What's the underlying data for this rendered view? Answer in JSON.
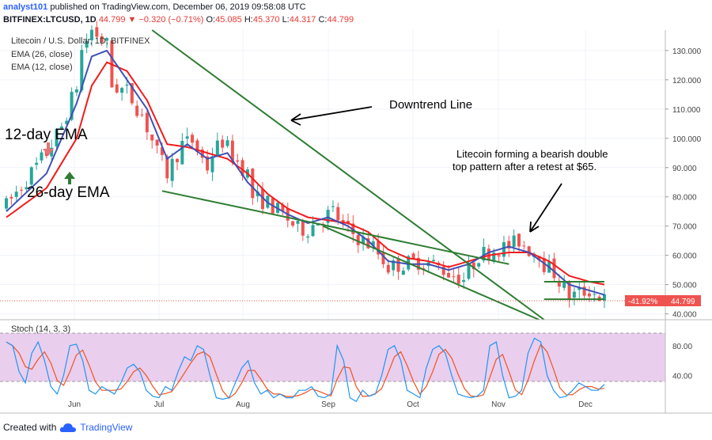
{
  "header": {
    "publisher": "analyst101",
    "published_text": "published on TradingView.com, December 06, 2019 09:58:08 UTC",
    "symbol": "BITFINEX:LTCUSD, 1D",
    "last": "44.799",
    "change": "−0.320 (−0.71%)",
    "ohlc_o_label": "O:",
    "ohlc_o": "45.085",
    "ohlc_h_label": "H:",
    "ohlc_h": "45.370",
    "ohlc_l_label": "L:",
    "ohlc_l": "44.317",
    "ohlc_c_label": "C:",
    "ohlc_c": "44.799"
  },
  "legend": {
    "title": "Litecoin / U.S. Dollar, 1D, BITFINEX",
    "ema26": "EMA (26, close)",
    "ema12": "EMA (12, close)",
    "stoch": "Stoch (14, 3, 3)"
  },
  "annotations": {
    "downtrend": "Downtrend Line",
    "double_top_line1": "Litecoin forming a bearish  double",
    "double_top_line2": "top pattern after a retest at $65.",
    "ema12_label": "12-day EMA",
    "ema26_label": "26-day EMA"
  },
  "price_badge": {
    "pct": "-41.92%",
    "price": "44.799"
  },
  "footer": {
    "created_with": "Created with",
    "brand": "TradingView"
  },
  "colors": {
    "up": "#26a69a",
    "down": "#ef5350",
    "ema12": "#3f51b5",
    "ema26": "#f21b1b",
    "trendline": "#2e7d32",
    "stoch_k": "#2196f3",
    "stoch_d": "#f4511e",
    "stoch_bg": "#e1bee7"
  },
  "chart_data": {
    "type": "candlestick",
    "y_axis": {
      "ticks": [
        "130.000",
        "120.000",
        "110.000",
        "100.000",
        "90.000",
        "80.000",
        "70.000",
        "60.000",
        "50.000",
        "40.000"
      ],
      "ylim": [
        38,
        137
      ]
    },
    "x_axis": {
      "ticks": [
        "Jun",
        "Jul",
        "Aug",
        "Sep",
        "Oct",
        "Nov",
        "Dec"
      ]
    },
    "stoch_axis": {
      "ticks": [
        "80.00",
        "40.00"
      ],
      "ylim": [
        0,
        100
      ],
      "bands": [
        80,
        20
      ]
    },
    "price_path": [
      [
        0,
        77
      ],
      [
        4,
        86
      ],
      [
        8,
        95
      ],
      [
        11,
        104
      ],
      [
        14,
        118
      ],
      [
        15,
        130
      ],
      [
        17,
        137
      ],
      [
        20,
        132
      ],
      [
        21,
        118
      ],
      [
        24,
        116
      ],
      [
        27,
        108
      ],
      [
        30,
        95
      ],
      [
        32,
        88
      ],
      [
        35,
        98
      ],
      [
        37,
        99
      ],
      [
        40,
        90
      ],
      [
        41,
        95
      ],
      [
        43,
        99
      ],
      [
        46,
        92
      ],
      [
        48,
        88
      ],
      [
        49,
        80
      ],
      [
        52,
        78
      ],
      [
        55,
        74
      ],
      [
        58,
        69
      ],
      [
        60,
        69
      ],
      [
        62,
        72
      ],
      [
        65,
        75
      ],
      [
        67,
        70
      ],
      [
        70,
        66
      ],
      [
        73,
        63
      ],
      [
        76,
        56
      ],
      [
        79,
        57
      ],
      [
        82,
        58
      ],
      [
        85,
        57
      ],
      [
        88,
        54
      ],
      [
        91,
        52
      ],
      [
        94,
        60
      ],
      [
        97,
        62
      ],
      [
        100,
        63
      ],
      [
        102,
        65
      ],
      [
        104,
        62
      ],
      [
        106,
        61
      ],
      [
        107,
        57
      ],
      [
        109,
        54
      ],
      [
        112,
        46
      ],
      [
        114,
        47
      ],
      [
        116,
        48
      ],
      [
        118,
        46
      ],
      [
        119,
        44.8
      ]
    ],
    "ema12_path": [
      [
        0,
        75
      ],
      [
        8,
        88
      ],
      [
        14,
        112
      ],
      [
        17,
        128
      ],
      [
        20,
        130
      ],
      [
        24,
        120
      ],
      [
        28,
        110
      ],
      [
        32,
        93
      ],
      [
        36,
        98
      ],
      [
        40,
        93
      ],
      [
        44,
        95
      ],
      [
        48,
        85
      ],
      [
        52,
        78
      ],
      [
        56,
        74
      ],
      [
        60,
        71
      ],
      [
        64,
        73
      ],
      [
        68,
        70
      ],
      [
        72,
        65
      ],
      [
        76,
        58
      ],
      [
        80,
        57
      ],
      [
        84,
        57
      ],
      [
        88,
        55
      ],
      [
        92,
        57
      ],
      [
        96,
        61
      ],
      [
        100,
        63
      ],
      [
        104,
        61
      ],
      [
        108,
        56
      ],
      [
        112,
        50
      ],
      [
        116,
        48
      ],
      [
        119,
        46.5
      ]
    ],
    "ema26_path": [
      [
        0,
        73
      ],
      [
        8,
        83
      ],
      [
        14,
        100
      ],
      [
        17,
        118
      ],
      [
        20,
        126
      ],
      [
        24,
        123
      ],
      [
        28,
        113
      ],
      [
        32,
        98
      ],
      [
        36,
        97
      ],
      [
        40,
        95
      ],
      [
        44,
        93
      ],
      [
        48,
        88
      ],
      [
        52,
        81
      ],
      [
        56,
        76
      ],
      [
        60,
        73
      ],
      [
        64,
        72
      ],
      [
        68,
        71
      ],
      [
        72,
        68
      ],
      [
        76,
        62
      ],
      [
        80,
        59
      ],
      [
        84,
        58
      ],
      [
        88,
        56
      ],
      [
        92,
        58
      ],
      [
        96,
        60
      ],
      [
        100,
        61
      ],
      [
        104,
        61
      ],
      [
        108,
        58
      ],
      [
        112,
        53
      ],
      [
        116,
        51
      ],
      [
        119,
        50
      ]
    ],
    "trendlines": [
      {
        "name": "downtrend",
        "points": [
          [
            29,
            137
          ],
          [
            107,
            38
          ]
        ]
      },
      {
        "name": "support",
        "points": [
          [
            31,
            82
          ],
          [
            100,
            57
          ]
        ]
      },
      {
        "name": "lower",
        "points": [
          [
            63,
            70
          ],
          [
            106,
            38
          ]
        ]
      },
      {
        "name": "resistance_h",
        "points": [
          [
            107,
            51
          ],
          [
            119,
            51
          ]
        ]
      },
      {
        "name": "support_h",
        "points": [
          [
            107,
            45
          ],
          [
            119,
            45
          ]
        ]
      }
    ],
    "stoch_k": [
      85,
      80,
      45,
      30,
      70,
      85,
      60,
      25,
      15,
      40,
      80,
      82,
      60,
      20,
      15,
      25,
      20,
      15,
      30,
      50,
      55,
      45,
      20,
      12,
      10,
      25,
      20,
      45,
      65,
      60,
      80,
      75,
      40,
      10,
      8,
      10,
      30,
      50,
      60,
      30,
      15,
      20,
      10,
      15,
      10,
      10,
      20,
      20,
      25,
      12,
      10,
      15,
      80,
      60,
      10,
      5,
      20,
      12,
      15,
      40,
      75,
      80,
      60,
      20,
      15,
      10,
      50,
      75,
      80,
      70,
      40,
      15,
      12,
      10,
      12,
      20,
      80,
      85,
      40,
      10,
      12,
      20,
      70,
      90,
      85,
      40,
      20,
      10,
      12,
      20,
      30,
      25,
      20,
      20,
      28
    ]
  }
}
